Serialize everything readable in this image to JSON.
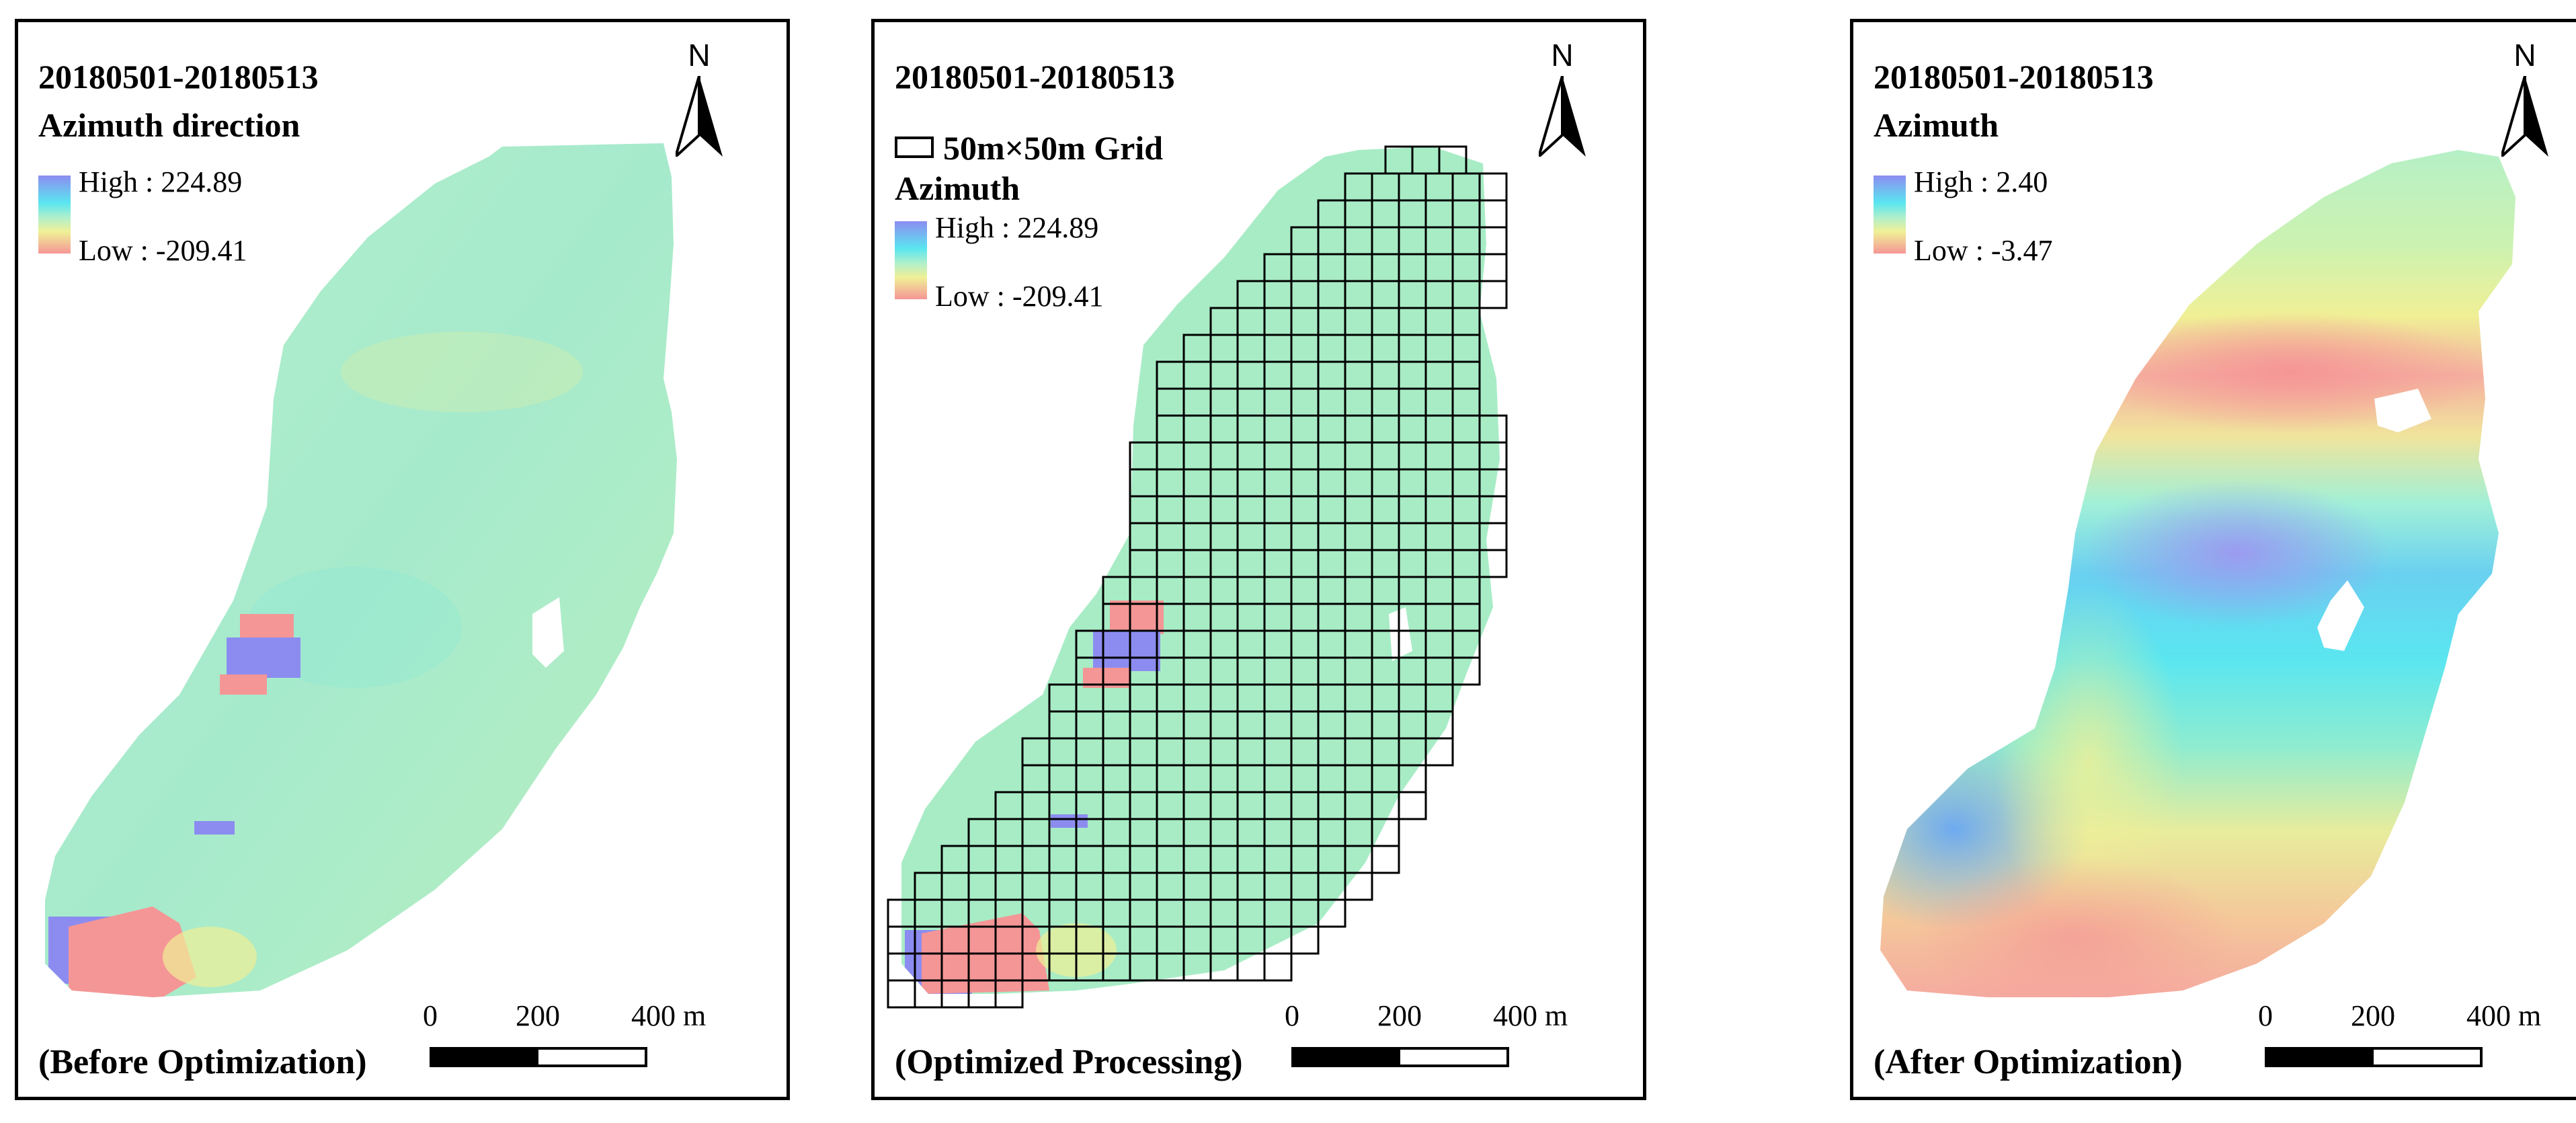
{
  "panels": [
    {
      "date_range": "20180501-20180513",
      "layer_title": "Azimuth direction",
      "legend_high": "High : 224.89",
      "legend_low": "Low : -209.41",
      "caption": "(Before Optimization)",
      "north_label": "N",
      "scale_ticks": [
        "0",
        "200",
        "400 m"
      ],
      "grid_overlay": false
    },
    {
      "date_range": "20180501-20180513",
      "grid_legend_label": "50m×50m Grid",
      "layer_title": "Azimuth",
      "legend_high": "High : 224.89",
      "legend_low": "Low : -209.41",
      "caption": "(Optimized Processing)",
      "north_label": "N",
      "scale_ticks": [
        "0",
        "200",
        "400 m"
      ],
      "grid_overlay": true
    },
    {
      "date_range": "20180501-20180513",
      "layer_title": "Azimuth",
      "legend_high": "High : 2.40",
      "legend_low": "Low : -3.47",
      "caption": "(After Optimization)",
      "north_label": "N",
      "scale_ticks": [
        "0",
        "200",
        "400 m"
      ],
      "grid_overlay": false
    }
  ],
  "colors": {
    "ramp_high": "#8c8cf0",
    "ramp_mid_1": "#5ae6f0",
    "ramp_mid_2": "#b4f0c8",
    "ramp_mid_3": "#f0f096",
    "ramp_low": "#f59696",
    "base_fill": "#a8ecc6",
    "frame": "#000000"
  }
}
